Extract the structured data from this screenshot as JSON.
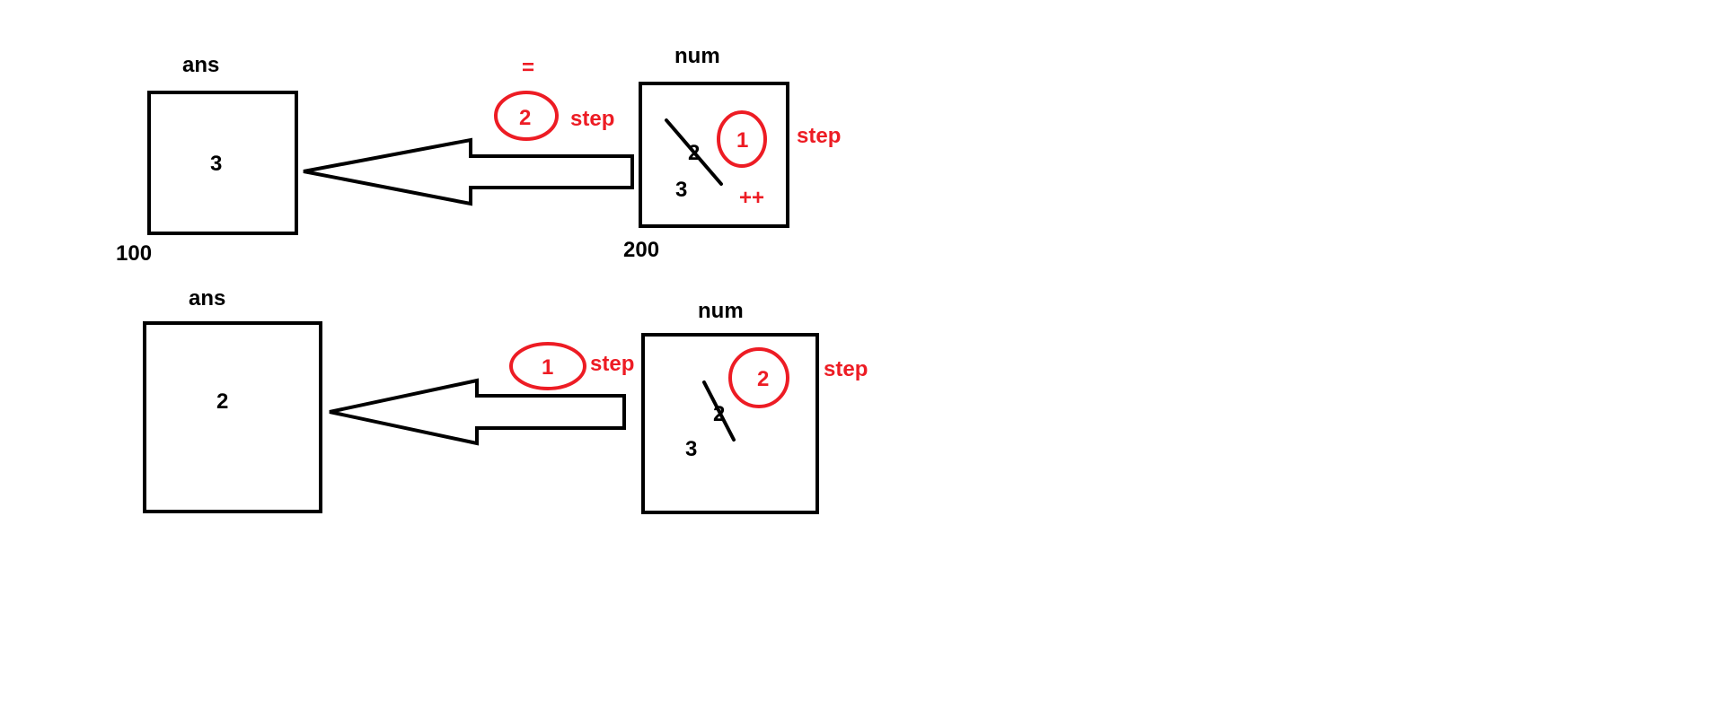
{
  "colors": {
    "ink": "#000000",
    "annotation": "#ed1c24",
    "background": "#ffffff"
  },
  "top": {
    "ans_label": "ans",
    "ans_value": "3",
    "ans_address": "100",
    "num_label": "num",
    "num_address": "200",
    "num_old_value": "2",
    "num_new_value": "3",
    "assign_symbol": "=",
    "assign_step_number": "2",
    "assign_step_label": "step",
    "increment_step_number": "1",
    "increment_step_label": "step",
    "increment_operator": "++"
  },
  "bottom": {
    "ans_label": "ans",
    "ans_value": "2",
    "num_label": "num",
    "num_old_value": "2",
    "num_new_value": "3",
    "assign_step_number": "1",
    "assign_step_label": "step",
    "increment_step_number": "2",
    "increment_step_label": "step"
  }
}
